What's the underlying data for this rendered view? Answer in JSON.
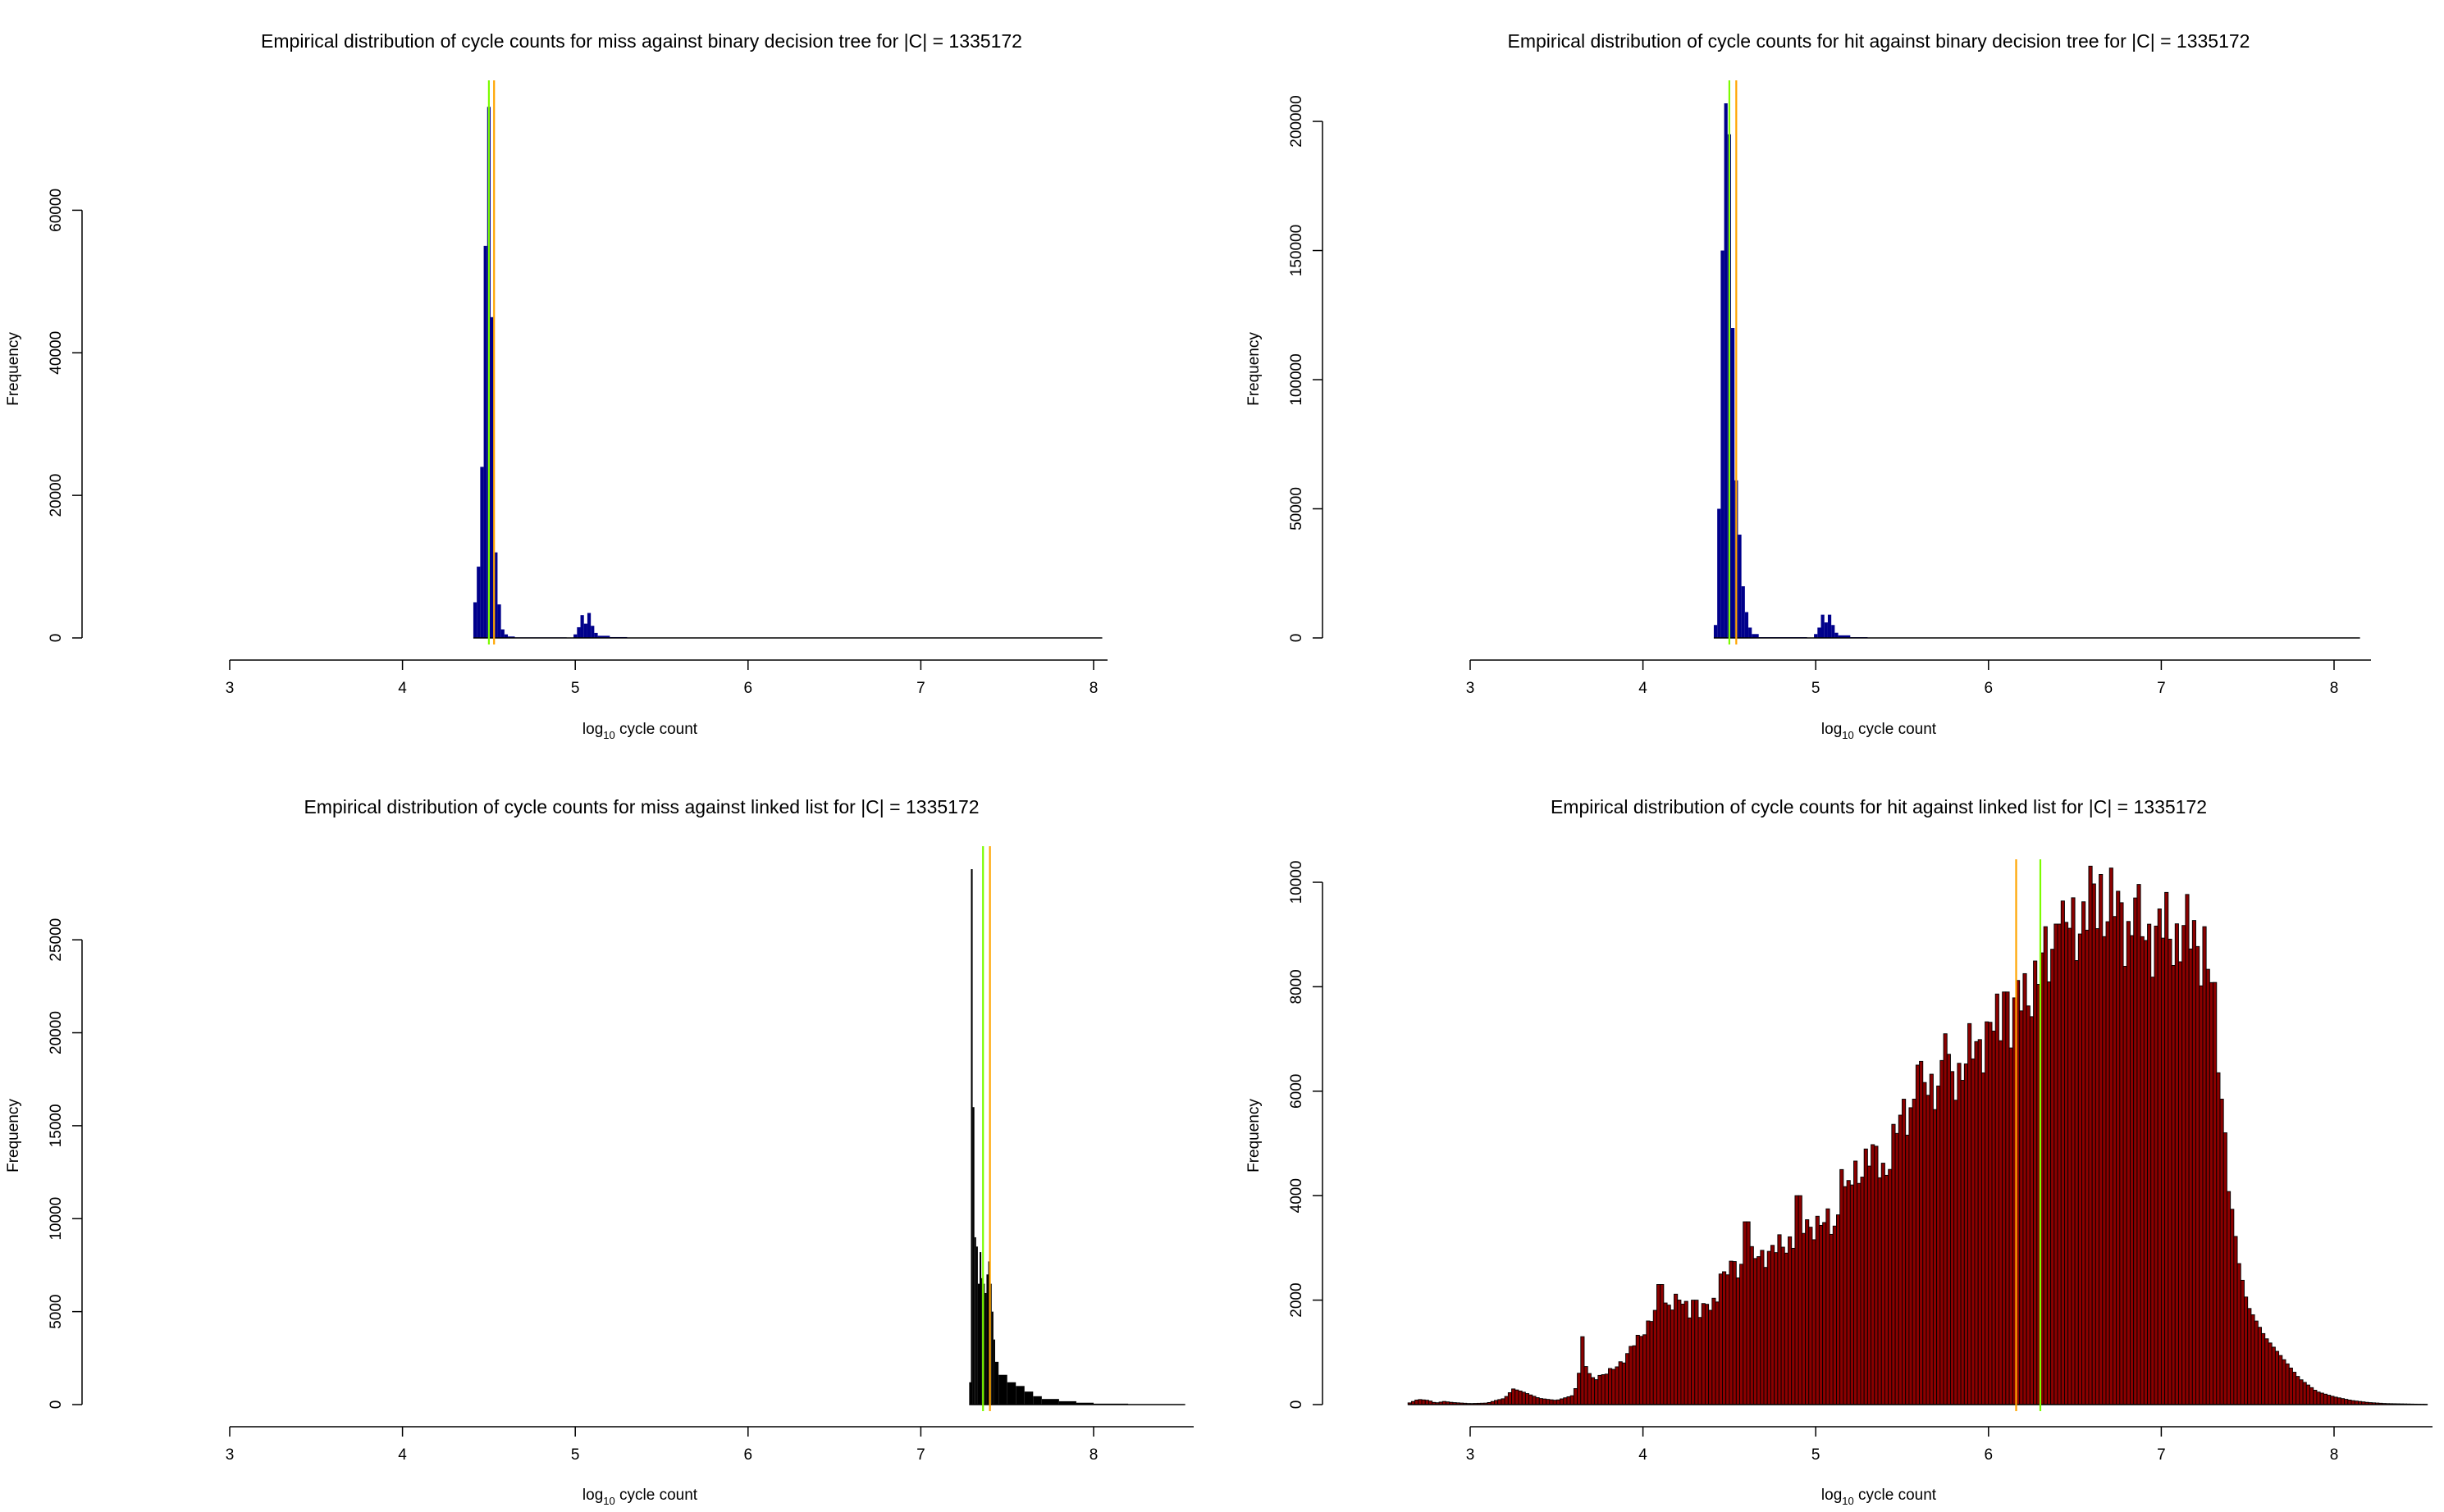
{
  "chart_data": [
    {
      "type": "bar",
      "title": "Empirical distribution of cycle counts for miss against binary decision tree for |C| = 1335172",
      "xlabel": "log10 cycle count",
      "ylabel": "Frequency",
      "xlim": [
        3,
        8.05
      ],
      "ylim": [
        0,
        75000
      ],
      "x_ticks": [
        3,
        4,
        5,
        6,
        7,
        8
      ],
      "y_ticks": [
        0,
        20000,
        40000,
        60000
      ],
      "bar_color": "#00008b",
      "vlines": [
        {
          "x": 4.5,
          "color": "#7cfc00"
        },
        {
          "x": 4.53,
          "color": "#ffa500"
        }
      ],
      "bins": [
        {
          "x0": 4.41,
          "x1": 4.43,
          "y": 5000
        },
        {
          "x0": 4.43,
          "x1": 4.45,
          "y": 10000
        },
        {
          "x0": 4.45,
          "x1": 4.47,
          "y": 24000
        },
        {
          "x0": 4.47,
          "x1": 4.49,
          "y": 55000
        },
        {
          "x0": 4.49,
          "x1": 4.51,
          "y": 74500
        },
        {
          "x0": 4.51,
          "x1": 4.53,
          "y": 45000
        },
        {
          "x0": 4.53,
          "x1": 4.55,
          "y": 12000
        },
        {
          "x0": 4.55,
          "x1": 4.57,
          "y": 4700
        },
        {
          "x0": 4.57,
          "x1": 4.59,
          "y": 1200
        },
        {
          "x0": 4.59,
          "x1": 4.61,
          "y": 500
        },
        {
          "x0": 4.61,
          "x1": 4.65,
          "y": 200
        },
        {
          "x0": 4.65,
          "x1": 4.95,
          "y": 80
        },
        {
          "x0": 4.99,
          "x1": 5.01,
          "y": 500
        },
        {
          "x0": 5.01,
          "x1": 5.03,
          "y": 1500
        },
        {
          "x0": 5.03,
          "x1": 5.05,
          "y": 3200
        },
        {
          "x0": 5.05,
          "x1": 5.07,
          "y": 2000
        },
        {
          "x0": 5.07,
          "x1": 5.09,
          "y": 3500
        },
        {
          "x0": 5.09,
          "x1": 5.11,
          "y": 1700
        },
        {
          "x0": 5.11,
          "x1": 5.13,
          "y": 700
        },
        {
          "x0": 5.13,
          "x1": 5.2,
          "y": 300
        },
        {
          "x0": 5.2,
          "x1": 5.3,
          "y": 120
        },
        {
          "x0": 5.3,
          "x1": 8.05,
          "y": 15
        }
      ]
    },
    {
      "type": "bar",
      "title": "Empirical distribution of cycle counts for hit against binary decision tree for |C| = 1335172",
      "xlabel": "log10 cycle count",
      "ylabel": "Frequency",
      "xlim": [
        3,
        8.15
      ],
      "ylim": [
        0,
        207000
      ],
      "x_ticks": [
        3,
        4,
        5,
        6,
        7,
        8
      ],
      "y_ticks": [
        0,
        50000,
        100000,
        150000,
        200000
      ],
      "bar_color": "#00008b",
      "vlines": [
        {
          "x": 4.5,
          "color": "#7cfc00"
        },
        {
          "x": 4.54,
          "color": "#ffa500"
        }
      ],
      "bins": [
        {
          "x0": 4.41,
          "x1": 4.43,
          "y": 5000
        },
        {
          "x0": 4.43,
          "x1": 4.45,
          "y": 50000
        },
        {
          "x0": 4.45,
          "x1": 4.47,
          "y": 150000
        },
        {
          "x0": 4.47,
          "x1": 4.49,
          "y": 207000
        },
        {
          "x0": 4.49,
          "x1": 4.51,
          "y": 195000
        },
        {
          "x0": 4.51,
          "x1": 4.53,
          "y": 120000
        },
        {
          "x0": 4.53,
          "x1": 4.55,
          "y": 61000
        },
        {
          "x0": 4.55,
          "x1": 4.57,
          "y": 40000
        },
        {
          "x0": 4.57,
          "x1": 4.59,
          "y": 20000
        },
        {
          "x0": 4.59,
          "x1": 4.61,
          "y": 10000
        },
        {
          "x0": 4.61,
          "x1": 4.63,
          "y": 4000
        },
        {
          "x0": 4.63,
          "x1": 4.67,
          "y": 1500
        },
        {
          "x0": 4.67,
          "x1": 4.95,
          "y": 300
        },
        {
          "x0": 4.99,
          "x1": 5.01,
          "y": 1500
        },
        {
          "x0": 5.01,
          "x1": 5.03,
          "y": 4000
        },
        {
          "x0": 5.03,
          "x1": 5.05,
          "y": 9000
        },
        {
          "x0": 5.05,
          "x1": 5.07,
          "y": 6000
        },
        {
          "x0": 5.07,
          "x1": 5.09,
          "y": 9000
        },
        {
          "x0": 5.09,
          "x1": 5.11,
          "y": 5000
        },
        {
          "x0": 5.11,
          "x1": 5.13,
          "y": 2000
        },
        {
          "x0": 5.13,
          "x1": 5.2,
          "y": 1000
        },
        {
          "x0": 5.2,
          "x1": 5.3,
          "y": 300
        },
        {
          "x0": 5.3,
          "x1": 8.15,
          "y": 40
        }
      ]
    },
    {
      "type": "bar",
      "title": "Empirical distribution of cycle counts for miss against linked list for |C| = 1335172",
      "xlabel": "log10 cycle count",
      "ylabel": "Frequency",
      "xlim": [
        3,
        8.53
      ],
      "ylim": [
        0,
        28800
      ],
      "x_ticks": [
        3,
        4,
        5,
        6,
        7,
        8
      ],
      "y_ticks": [
        0,
        5000,
        10000,
        15000,
        20000,
        25000
      ],
      "bar_color": "#000000",
      "vlines": [
        {
          "x": 7.36,
          "color": "#7cfc00"
        },
        {
          "x": 7.4,
          "color": "#ffa500"
        }
      ],
      "bins": [
        {
          "x0": 7.28,
          "x1": 7.29,
          "y": 1200
        },
        {
          "x0": 7.29,
          "x1": 7.3,
          "y": 28800
        },
        {
          "x0": 7.3,
          "x1": 7.31,
          "y": 16000
        },
        {
          "x0": 7.31,
          "x1": 7.32,
          "y": 9000
        },
        {
          "x0": 7.32,
          "x1": 7.33,
          "y": 8500
        },
        {
          "x0": 7.33,
          "x1": 7.34,
          "y": 6500
        },
        {
          "x0": 7.34,
          "x1": 7.35,
          "y": 8200
        },
        {
          "x0": 7.35,
          "x1": 7.36,
          "y": 6800
        },
        {
          "x0": 7.36,
          "x1": 7.37,
          "y": 6500
        },
        {
          "x0": 7.37,
          "x1": 7.38,
          "y": 6000
        },
        {
          "x0": 7.38,
          "x1": 7.39,
          "y": 7000
        },
        {
          "x0": 7.39,
          "x1": 7.4,
          "y": 7700
        },
        {
          "x0": 7.4,
          "x1": 7.41,
          "y": 6500
        },
        {
          "x0": 7.41,
          "x1": 7.42,
          "y": 5000
        },
        {
          "x0": 7.42,
          "x1": 7.43,
          "y": 3500
        },
        {
          "x0": 7.43,
          "x1": 7.45,
          "y": 2300
        },
        {
          "x0": 7.45,
          "x1": 7.5,
          "y": 1600
        },
        {
          "x0": 7.5,
          "x1": 7.55,
          "y": 1200
        },
        {
          "x0": 7.55,
          "x1": 7.6,
          "y": 1000
        },
        {
          "x0": 7.6,
          "x1": 7.65,
          "y": 700
        },
        {
          "x0": 7.65,
          "x1": 7.7,
          "y": 450
        },
        {
          "x0": 7.7,
          "x1": 7.8,
          "y": 300
        },
        {
          "x0": 7.8,
          "x1": 7.9,
          "y": 180
        },
        {
          "x0": 7.9,
          "x1": 8.0,
          "y": 100
        },
        {
          "x0": 8.0,
          "x1": 8.2,
          "y": 50
        },
        {
          "x0": 8.2,
          "x1": 8.53,
          "y": 20
        }
      ]
    },
    {
      "type": "bar",
      "title": "Empirical distribution of cycle counts for hit against linked list for |C| = 1335172",
      "xlabel": "log10 cycle count",
      "ylabel": "Frequency",
      "xlim": [
        2.64,
        8.53
      ],
      "ylim": [
        0,
        10000
      ],
      "x_ticks": [
        3,
        4,
        5,
        6,
        7,
        8
      ],
      "y_ticks": [
        0,
        2000,
        4000,
        6000,
        8000,
        10000
      ],
      "bar_color": "#8b0000",
      "bin_width": 0.02,
      "bins_start": 2.64,
      "vlines": [
        {
          "x": 6.16,
          "color": "#ffa500"
        },
        {
          "x": 6.3,
          "color": "#7cfc00"
        }
      ],
      "profile": [
        [
          2.64,
          20
        ],
        [
          2.7,
          100
        ],
        [
          2.76,
          80
        ],
        [
          2.8,
          30
        ],
        [
          2.85,
          60
        ],
        [
          2.9,
          40
        ],
        [
          3.0,
          20
        ],
        [
          3.1,
          30
        ],
        [
          3.15,
          80
        ],
        [
          3.2,
          120
        ],
        [
          3.25,
          300
        ],
        [
          3.3,
          250
        ],
        [
          3.4,
          120
        ],
        [
          3.5,
          80
        ],
        [
          3.6,
          180
        ],
        [
          3.65,
          900
        ],
        [
          3.7,
          500
        ],
        [
          3.8,
          600
        ],
        [
          3.9,
          900
        ],
        [
          4.0,
          1400
        ],
        [
          4.1,
          1900
        ],
        [
          4.2,
          2000
        ],
        [
          4.3,
          1700
        ],
        [
          4.4,
          1900
        ],
        [
          4.5,
          2600
        ],
        [
          4.6,
          2700
        ],
        [
          4.7,
          2900
        ],
        [
          4.8,
          3000
        ],
        [
          4.9,
          3300
        ],
        [
          5.0,
          3500
        ],
        [
          5.1,
          3400
        ],
        [
          5.2,
          4200
        ],
        [
          5.3,
          4800
        ],
        [
          5.4,
          4500
        ],
        [
          5.5,
          5500
        ],
        [
          5.6,
          6000
        ],
        [
          5.7,
          6200
        ],
        [
          5.8,
          6300
        ],
        [
          5.9,
          6700
        ],
        [
          6.0,
          7200
        ],
        [
          6.1,
          7200
        ],
        [
          6.2,
          7800
        ],
        [
          6.3,
          8300
        ],
        [
          6.4,
          8900
        ],
        [
          6.5,
          9200
        ],
        [
          6.6,
          9600
        ],
        [
          6.7,
          9600
        ],
        [
          6.8,
          9200
        ],
        [
          6.9,
          9000
        ],
        [
          7.0,
          9100
        ],
        [
          7.1,
          9000
        ],
        [
          7.2,
          9000
        ],
        [
          7.25,
          8700
        ],
        [
          7.3,
          7800
        ],
        [
          7.35,
          6000
        ],
        [
          7.4,
          4000
        ],
        [
          7.45,
          2700
        ],
        [
          7.5,
          1900
        ],
        [
          7.6,
          1300
        ],
        [
          7.7,
          900
        ],
        [
          7.8,
          500
        ],
        [
          7.9,
          250
        ],
        [
          8.0,
          150
        ],
        [
          8.1,
          80
        ],
        [
          8.2,
          40
        ],
        [
          8.3,
          20
        ],
        [
          8.53,
          5
        ]
      ],
      "peaks": [
        [
          3.65,
          1300
        ],
        [
          4.1,
          2300
        ],
        [
          4.3,
          2000
        ],
        [
          4.45,
          2500
        ],
        [
          4.6,
          3500
        ],
        [
          4.9,
          4000
        ],
        [
          5.15,
          4500
        ],
        [
          5.6,
          6500
        ],
        [
          5.75,
          7100
        ],
        [
          6.1,
          7900
        ],
        [
          6.4,
          9200
        ],
        [
          6.65,
          10150
        ],
        [
          6.85,
          9700
        ],
        [
          7.25,
          9150
        ]
      ]
    }
  ]
}
